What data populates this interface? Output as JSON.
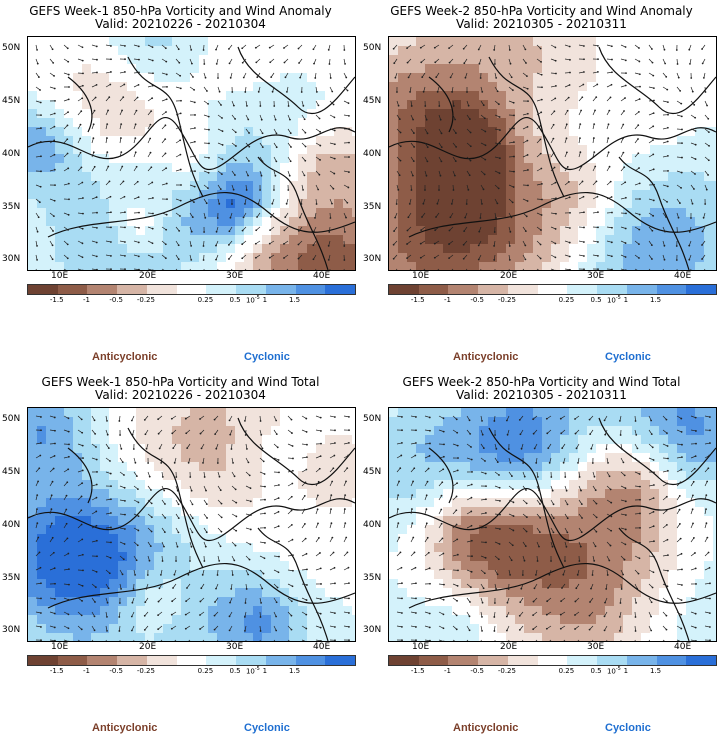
{
  "panels": [
    {
      "title": "GEFS Week-1 850-hPa Vorticity and Wind Anomaly",
      "valid": "Valid: 20210226 - 20210304",
      "seed": 3
    },
    {
      "title": "GEFS Week-2 850-hPa Vorticity and Wind Anomaly",
      "valid": "Valid: 20210305 - 20210311",
      "seed": 7
    },
    {
      "title": "GEFS Week-1 850-hPa Vorticity and Wind Total",
      "valid": "Valid: 20210226 - 20210304",
      "seed": 11
    },
    {
      "title": "GEFS Week-2 850-hPa Vorticity and Wind Total",
      "valid": "Valid: 20210305 - 20210311",
      "seed": 17
    }
  ],
  "lat_labels": [
    "50N",
    "45N",
    "40N",
    "35N",
    "30N"
  ],
  "lon_labels": [
    "10E",
    "20E",
    "30E",
    "40E"
  ],
  "colorbar": {
    "colors": [
      "#6e4232",
      "#8e5c48",
      "#b38471",
      "#d6b5a6",
      "#f1e3dc",
      "#ffffff",
      "#d4f2fb",
      "#a9dcf3",
      "#78b4ea",
      "#4f91e2",
      "#2a6fd8"
    ],
    "labels": [
      "-1.5",
      "-1",
      "-0.5",
      "-0.25",
      "0.25",
      "0.5",
      "1",
      "1.5"
    ],
    "unit": "10",
    "unit_sup": "-5"
  },
  "legend": {
    "anticyclonic": "Anticyclonic",
    "cyclonic": "Cyclonic"
  }
}
